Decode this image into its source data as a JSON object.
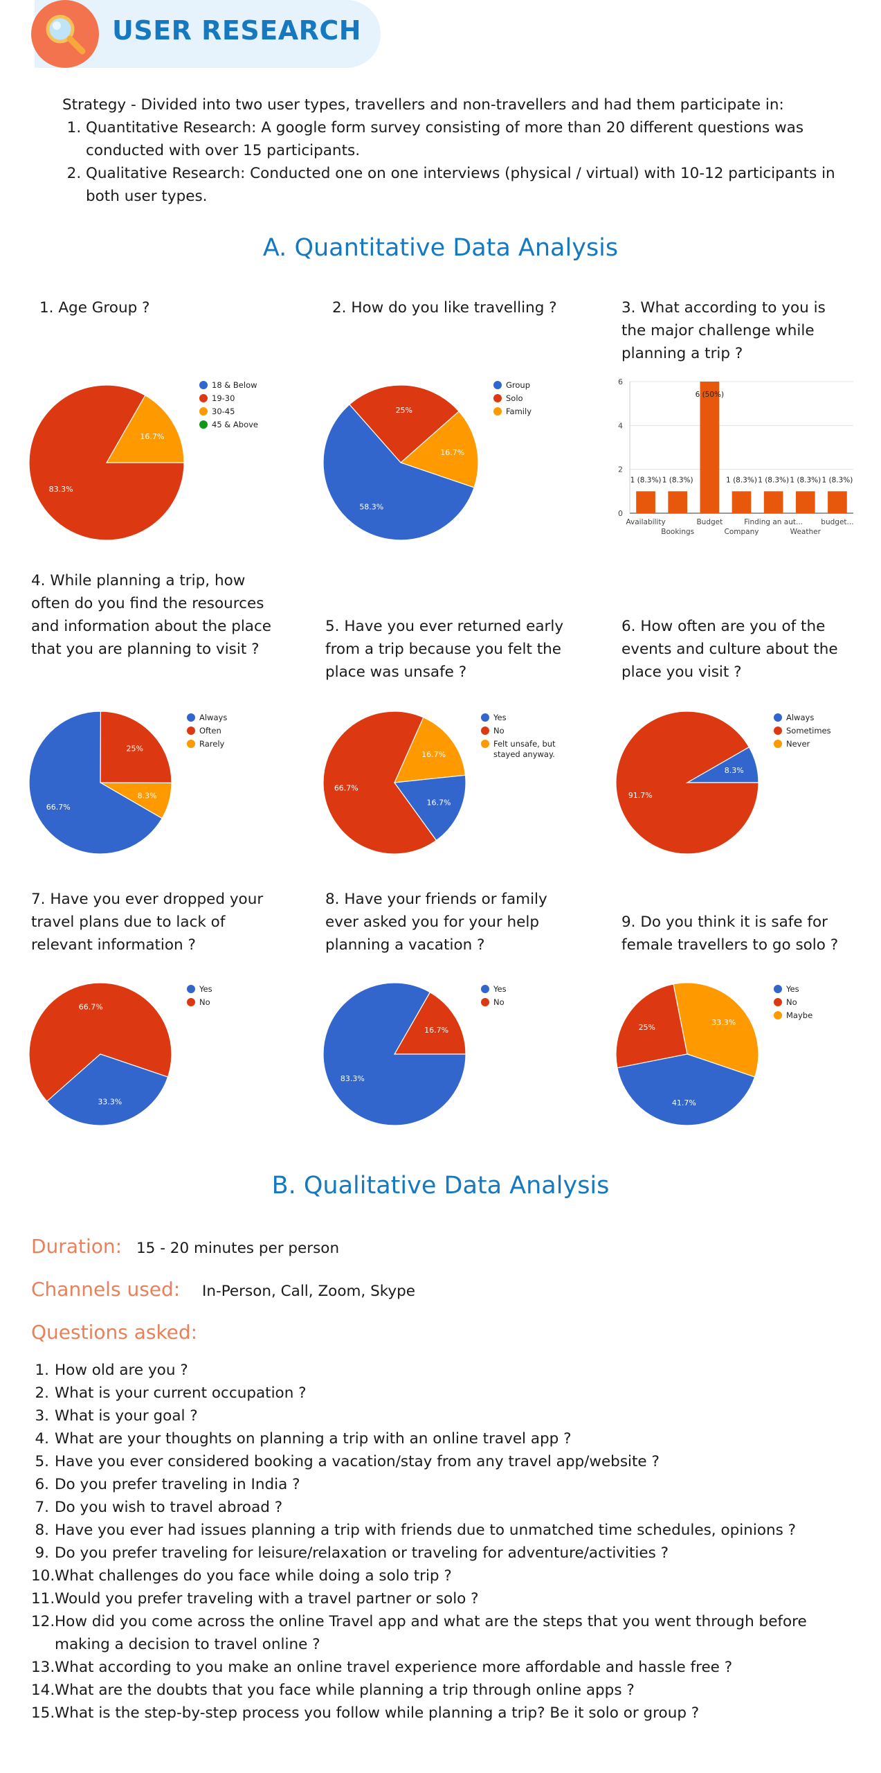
{
  "header": {
    "title": "USER RESEARCH",
    "icon": "magnifier-icon"
  },
  "strategy": {
    "intro": "Strategy - Divided into two user types, travellers and non-travellers and had them participate in:",
    "items": [
      "Quantitative Research: A google form survey consisting of more than 20 different questions was conducted with over 15 participants.",
      "Qualitative Research: Conducted one on one interviews (physical / virtual) with 10-12 participants in both user types."
    ]
  },
  "section_a": {
    "title": "A. Quantitative Data Analysis"
  },
  "questions_a": [
    "1. Age Group ?",
    "2. How do you like travelling ?",
    "3. What according to you is the major challenge while planning a trip ?",
    "4. While planning a trip, how often do you find the resources and information about the place that you are planning to visit ?",
    "5. Have you ever returned early from a trip because you felt the place was unsafe ?",
    "6. How often are you of the events and culture about the place you visit ?",
    "7. Have you ever dropped your travel plans due to lack of relevant information ?",
    "8. Have your friends or family ever asked you for your help planning a vacation ?",
    "9. Do you think it is safe for female travellers to go solo ?"
  ],
  "colors": {
    "blue": "#3366cc",
    "red": "#dc3912",
    "orange": "#ff9900",
    "green": "#109618",
    "bar": "#e8580c",
    "title_blue": "#1679bf",
    "accent": "#f2734e"
  },
  "chart_data": [
    {
      "type": "pie",
      "legend": [
        "18 & Below",
        "19-30",
        "30-45",
        "45 & Above"
      ],
      "values": [
        0,
        83.3,
        16.7,
        0
      ],
      "labels": [
        "",
        "83.3%",
        "16.7%",
        ""
      ]
    },
    {
      "type": "pie",
      "legend": [
        "Group",
        "Solo",
        "Family"
      ],
      "values": [
        58.3,
        25,
        16.7
      ],
      "labels": [
        "58.3%",
        "25%",
        "16.7%"
      ]
    },
    {
      "type": "bar",
      "categories": [
        "Availability",
        "Bookings",
        "Budget",
        "Company",
        "Finding an aut...",
        "Weather",
        "budget..."
      ],
      "values": [
        1,
        1,
        6,
        1,
        1,
        1,
        1
      ],
      "labels": [
        "1 (8.3%)",
        "1 (8.3%)",
        "6 (50%)",
        "1 (8.3%)",
        "1 (8.3%)",
        "1 (8.3%)",
        "1 (8.3%)"
      ],
      "yticks": [
        "0",
        "2",
        "4",
        "6"
      ],
      "ylim": [
        0,
        6
      ]
    },
    {
      "type": "pie",
      "legend": [
        "Always",
        "Often",
        "Rarely"
      ],
      "values": [
        66.7,
        25,
        8.3
      ],
      "labels": [
        "66.7%",
        "25%",
        "8.3%"
      ]
    },
    {
      "type": "pie",
      "legend": [
        "Yes",
        "No",
        "Felt unsafe, but stayed anyway."
      ],
      "values": [
        16.7,
        66.7,
        16.7
      ],
      "labels": [
        "16.7%",
        "66.7%",
        "16.7%"
      ]
    },
    {
      "type": "pie",
      "legend": [
        "Always",
        "Sometimes",
        "Never"
      ],
      "values": [
        8.3,
        91.7,
        0
      ],
      "labels": [
        "8.3%",
        "91.7%",
        ""
      ]
    },
    {
      "type": "pie",
      "legend": [
        "Yes",
        "No"
      ],
      "values": [
        33.3,
        66.7
      ],
      "labels": [
        "33.3%",
        "66.7%"
      ]
    },
    {
      "type": "pie",
      "legend": [
        "Yes",
        "No"
      ],
      "values": [
        83.3,
        16.7
      ],
      "labels": [
        "83.3%",
        "16.7%"
      ]
    },
    {
      "type": "pie",
      "legend": [
        "Yes",
        "No",
        "Maybe"
      ],
      "values": [
        41.7,
        25,
        33.3
      ],
      "labels": [
        "41.7%",
        "25%",
        "33.3%"
      ]
    }
  ],
  "section_b": {
    "title": "B. Qualitative Data Analysis",
    "duration_label": "Duration:",
    "duration_value": "15 - 20 minutes per person",
    "channels_label": "Channels used:",
    "channels_value": "In-Person, Call, Zoom, Skype",
    "questions_label": "Questions asked:",
    "questions": [
      "How old are you ?",
      "What is your current occupation ?",
      "What is your goal ?",
      "What are your thoughts on planning a trip with an online travel app ?",
      "Have you ever considered booking a vacation/stay from any travel app/website ?",
      "Do you prefer traveling in India ?",
      "Do you wish to travel abroad ?",
      "Have you ever had issues planning a trip with friends due to unmatched time schedules, opinions ?",
      "Do you prefer traveling for leisure/relaxation or traveling for adventure/activities ?",
      "What challenges do you face while doing a solo trip ?",
      "Would you prefer traveling with a travel partner or solo ?",
      "How did you come across the online Travel app and what are the steps that you went through before making a decision to travel online ?",
      "What according to you make an online travel experience more affordable and hassle free ?",
      "What are the doubts that you face while planning a trip through online apps ?",
      "What is the step-by-step process you follow while planning a trip? Be it solo or group ?"
    ]
  }
}
